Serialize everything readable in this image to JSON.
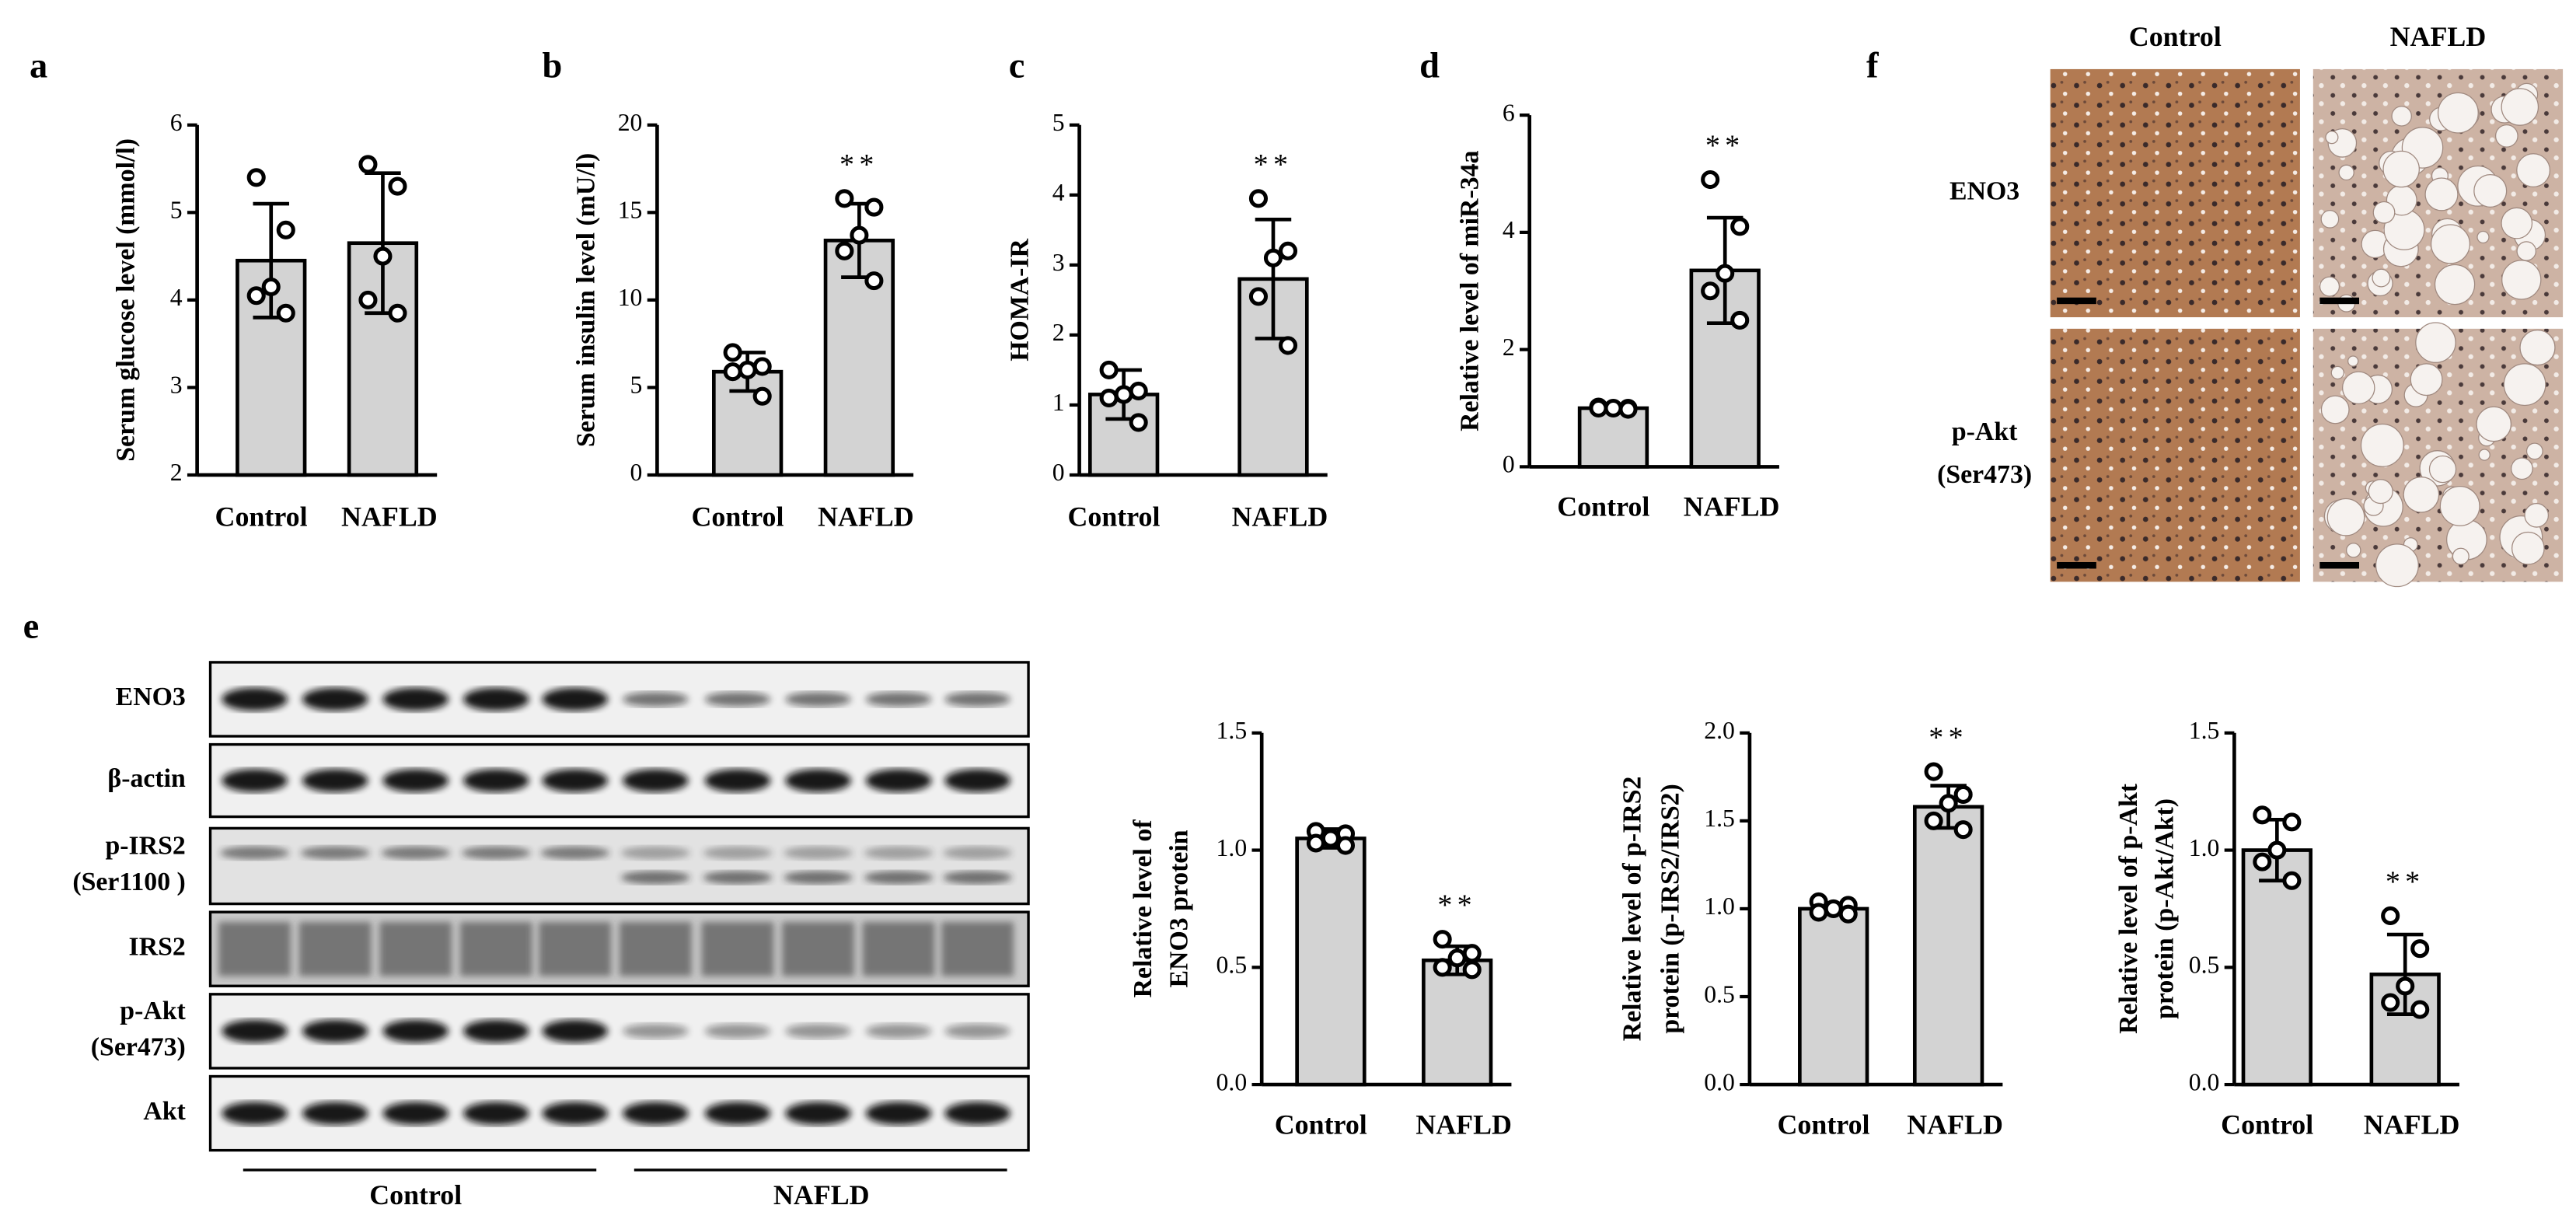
{
  "panel_labels": [
    "a",
    "b",
    "c",
    "d",
    "e",
    "f"
  ],
  "chart_data": [
    {
      "type": "bar",
      "categories": [
        "Control",
        "NAFLD"
      ],
      "values": [
        4.45,
        4.65
      ],
      "errors": [
        0.65,
        0.8
      ],
      "points": [
        [
          5.4,
          4.8,
          4.15,
          4.05,
          3.85
        ],
        [
          5.55,
          5.3,
          4.5,
          4.0,
          3.85
        ]
      ],
      "ylabel": [
        "Serum glucose level (mmol/l)"
      ],
      "ylim": [
        2,
        6
      ],
      "yticks": [
        2,
        3,
        4,
        5,
        6
      ],
      "color": "#d3d3d3"
    },
    {
      "type": "bar",
      "categories": [
        "Control",
        "NAFLD"
      ],
      "values": [
        5.9,
        13.4
      ],
      "errors": [
        1.1,
        2.1
      ],
      "points": [
        [
          7.0,
          6.2,
          6.0,
          5.9,
          4.5
        ],
        [
          15.8,
          15.3,
          13.7,
          12.8,
          11.1
        ]
      ],
      "ylabel": [
        "Serum insulin level (mU/l)"
      ],
      "ylim": [
        0,
        20
      ],
      "yticks": [
        0,
        5,
        10,
        15,
        20
      ],
      "annotation": "**",
      "color": "#d3d3d3"
    },
    {
      "type": "bar",
      "categories": [
        "Control",
        "NAFLD"
      ],
      "values": [
        1.15,
        2.8
      ],
      "errors": [
        0.35,
        0.85
      ],
      "points": [
        [
          1.5,
          1.2,
          1.15,
          1.1,
          0.75
        ],
        [
          3.95,
          3.2,
          3.1,
          2.55,
          1.85
        ]
      ],
      "ylabel": [
        "HOMA-IR"
      ],
      "ylim": [
        0,
        5
      ],
      "yticks": [
        0,
        1,
        2,
        3,
        4,
        5
      ],
      "annotation": "**",
      "color": "#d3d3d3"
    },
    {
      "type": "bar",
      "categories": [
        "Control",
        "NAFLD"
      ],
      "values": [
        1.0,
        3.35
      ],
      "errors": [
        0.05,
        0.9
      ],
      "points": [
        [
          1.02,
          1.0,
          1.0,
          1.0,
          0.98
        ],
        [
          4.9,
          4.1,
          3.3,
          3.0,
          2.5
        ]
      ],
      "ylabel": [
        "Relative level of miR-34a"
      ],
      "ylim": [
        0,
        6
      ],
      "yticks": [
        0,
        2,
        4,
        6
      ],
      "annotation": "**",
      "color": "#d3d3d3"
    },
    {
      "type": "bar",
      "categories": [
        "Control",
        "NAFLD"
      ],
      "values": [
        1.05,
        0.53
      ],
      "errors": [
        0.04,
        0.06
      ],
      "points": [
        [
          1.08,
          1.07,
          1.05,
          1.03,
          1.02
        ],
        [
          0.62,
          0.56,
          0.54,
          0.5,
          0.49
        ]
      ],
      "ylabel": [
        "Relative level of",
        "ENO3 protein"
      ],
      "ylim": [
        0,
        1.5
      ],
      "yticks": [
        {
          "value": 0,
          "label": "0.0"
        },
        0.5,
        {
          "value": 1,
          "label": "1.0"
        },
        1.5
      ],
      "annotation": "**",
      "color": "#d3d3d3"
    },
    {
      "type": "bar",
      "categories": [
        "Control",
        "NAFLD"
      ],
      "values": [
        1.0,
        1.58
      ],
      "errors": [
        0.03,
        0.12
      ],
      "points": [
        [
          1.04,
          1.02,
          1.0,
          0.98,
          0.97
        ],
        [
          1.78,
          1.65,
          1.6,
          1.5,
          1.45
        ]
      ],
      "ylabel": [
        "Relative level of p-IRS2",
        "protein (p-IRS2/IRS2)"
      ],
      "ylim": [
        0,
        2
      ],
      "yticks": [
        {
          "value": 0,
          "label": "0.0"
        },
        0.5,
        {
          "value": 1,
          "label": "1.0"
        },
        1.5,
        {
          "value": 2,
          "label": "2.0"
        }
      ],
      "annotation": "**",
      "color": "#d3d3d3"
    },
    {
      "type": "bar",
      "categories": [
        "Control",
        "NAFLD"
      ],
      "values": [
        1.0,
        0.47
      ],
      "errors": [
        0.13,
        0.17
      ],
      "points": [
        [
          1.15,
          1.12,
          1.0,
          0.95,
          0.87
        ],
        [
          0.72,
          0.58,
          0.42,
          0.35,
          0.32
        ]
      ],
      "ylabel": [
        "Relative level of p-Akt",
        "protein (p-Akt/Akt)"
      ],
      "ylim": [
        0,
        1.5
      ],
      "yticks": [
        {
          "value": 0,
          "label": "0.0"
        },
        0.5,
        {
          "value": 1,
          "label": "1.0"
        },
        1.5
      ],
      "annotation": "**",
      "color": "#d3d3d3"
    }
  ],
  "blot": {
    "rows": [
      [
        "ENO3"
      ],
      [
        "β-actin"
      ],
      [
        "p-IRS2",
        "(Ser1100 )"
      ],
      [
        "IRS2"
      ],
      [
        "p-Akt",
        "(Ser473)"
      ],
      [
        "Akt"
      ]
    ],
    "groups": [
      "Control",
      "NAFLD"
    ]
  },
  "histology": {
    "columns": [
      "Control",
      "NAFLD"
    ],
    "rows": [
      [
        "ENO3"
      ],
      [
        "p-Akt",
        "(Ser473)"
      ]
    ]
  }
}
